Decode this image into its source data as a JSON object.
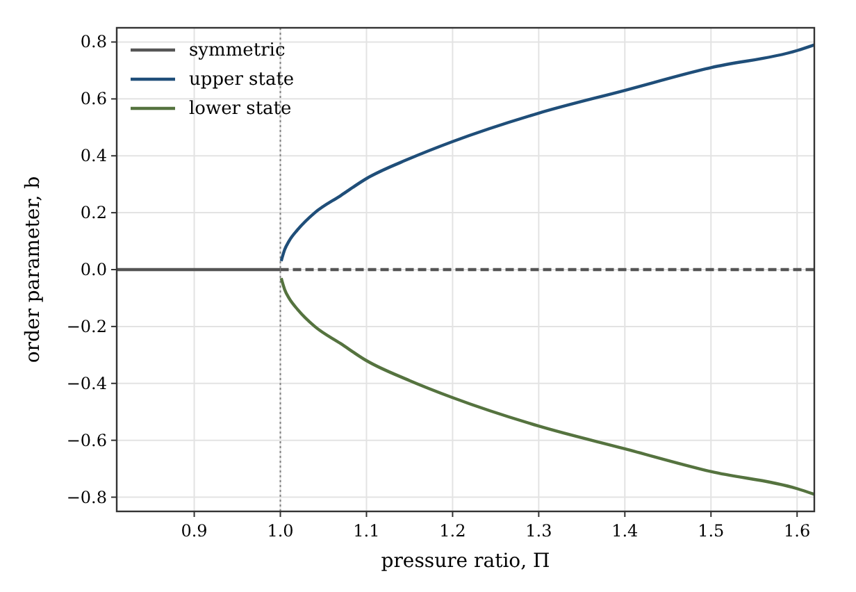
{
  "chart_data": {
    "type": "line",
    "xlabel": "pressure ratio, Π",
    "ylabel": "order parameter, b",
    "xlim": [
      0.81,
      1.62
    ],
    "ylim": [
      -0.85,
      0.85
    ],
    "xticks": [
      0.9,
      {
        "value": 1.0,
        "label": "1.0"
      },
      1.1,
      1.2,
      1.3,
      1.4,
      1.5,
      1.6
    ],
    "yticks": [
      {
        "value": -0.8,
        "label": "−0.8"
      },
      {
        "value": -0.6,
        "label": "−0.6"
      },
      {
        "value": -0.4,
        "label": "−0.4"
      },
      {
        "value": -0.2,
        "label": "−0.2"
      },
      {
        "value": 0,
        "label": "0.0"
      },
      {
        "value": 0.2,
        "label": "0.2"
      },
      {
        "value": 0.4,
        "label": "0.4"
      },
      {
        "value": 0.6,
        "label": "0.6"
      },
      {
        "value": 0.8,
        "label": "0.8"
      }
    ],
    "grid": true,
    "legend": "top left",
    "ref_lines": [
      {
        "axis": "x",
        "value": 1.0,
        "color": "#808080",
        "line_style": "dotted"
      }
    ],
    "series": [
      {
        "name": "symmetric",
        "color": "#555555",
        "x": [
          0.81,
          1.0
        ],
        "values": [
          0,
          0
        ]
      },
      {
        "color": "#555555",
        "line_style": "dashed",
        "x": [
          1.0,
          1.62
        ],
        "values": [
          0,
          0
        ]
      },
      {
        "name": "upper state",
        "color": "#1f4e79",
        "x": [
          1.001,
          1.005,
          1.01,
          1.02,
          1.04,
          1.07,
          1.1,
          1.15,
          1.2,
          1.3,
          1.4,
          1.5,
          1.6,
          1.62
        ],
        "values": [
          0.03,
          0.07,
          0.1,
          0.14,
          0.2,
          0.26,
          0.32,
          0.39,
          0.45,
          0.55,
          0.63,
          0.71,
          0.77,
          0.79
        ]
      },
      {
        "name": "lower state",
        "color": "#55733f",
        "x": [
          1.001,
          1.005,
          1.01,
          1.02,
          1.04,
          1.07,
          1.1,
          1.15,
          1.2,
          1.3,
          1.4,
          1.5,
          1.6,
          1.62
        ],
        "values": [
          -0.03,
          -0.07,
          -0.1,
          -0.14,
          -0.2,
          -0.26,
          -0.32,
          -0.39,
          -0.45,
          -0.55,
          -0.63,
          -0.71,
          -0.77,
          -0.79
        ]
      }
    ]
  }
}
